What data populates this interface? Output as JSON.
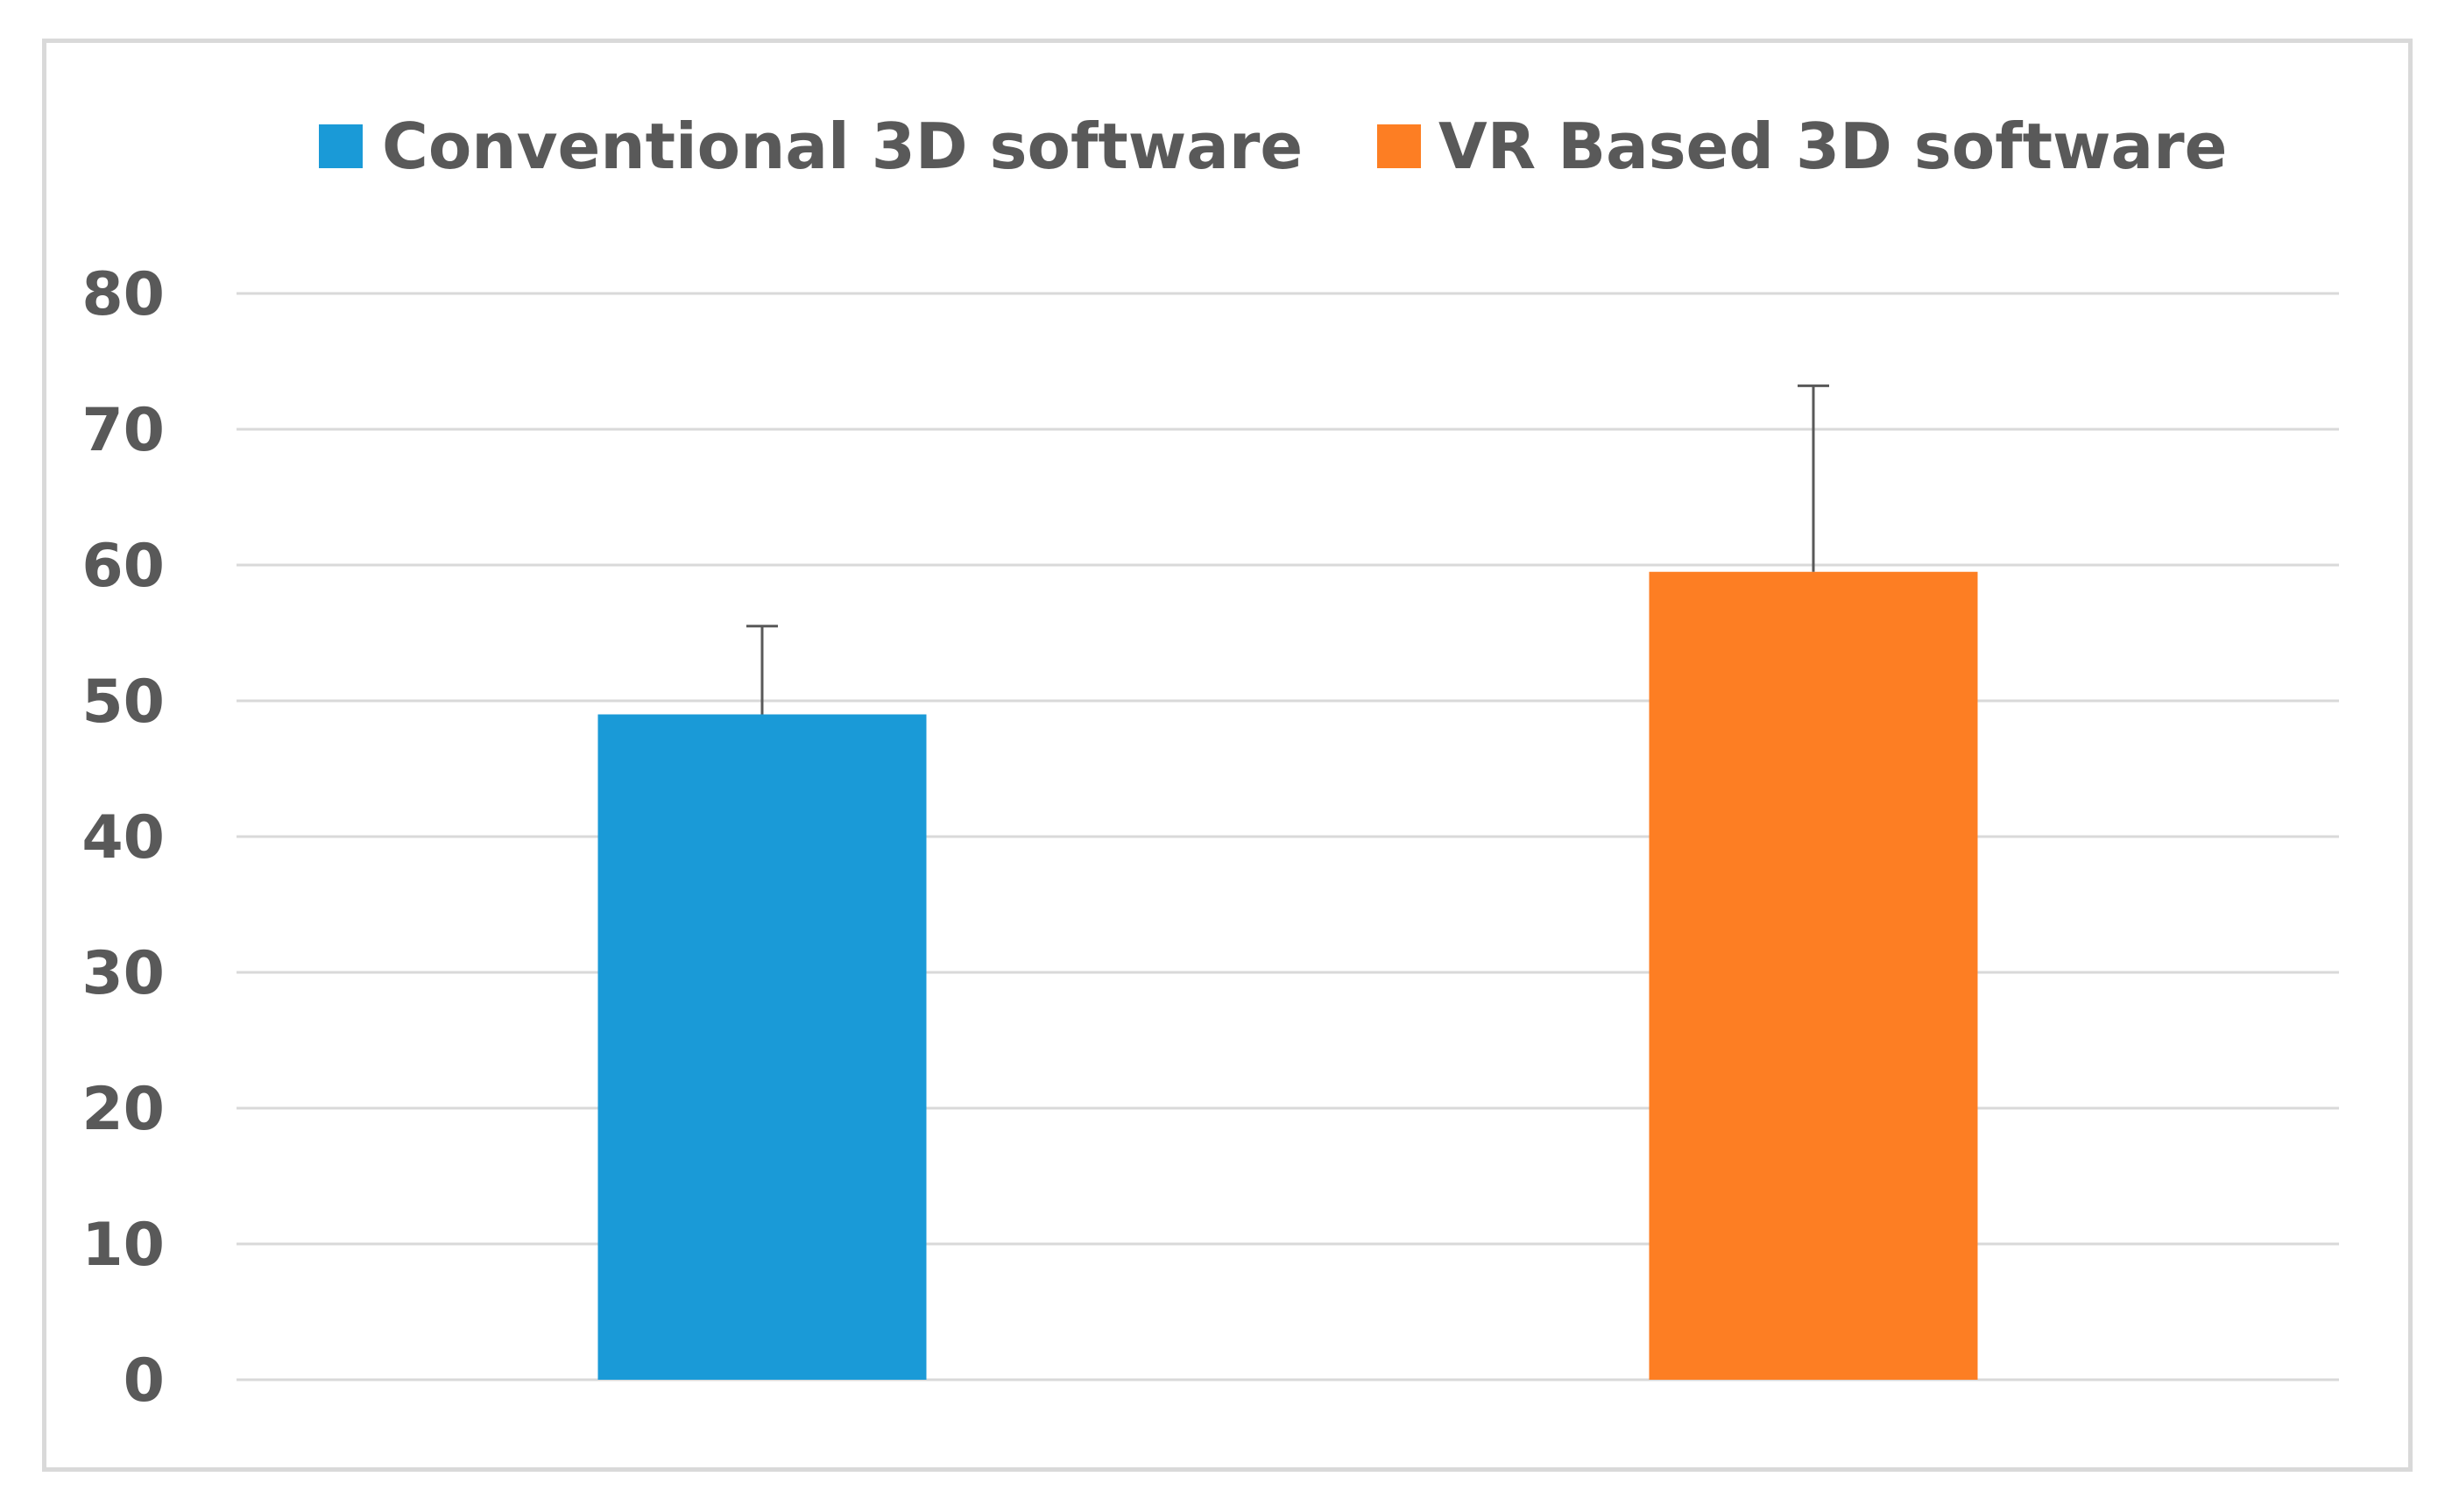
{
  "chart_data": {
    "type": "bar",
    "categories": [
      "Conventional 3D software",
      "VR Based 3D software"
    ],
    "series": [
      {
        "name": "Conventional 3D software",
        "value": 49,
        "error": 6.5,
        "color": "#1a9ad7"
      },
      {
        "name": "VR Based 3D software",
        "value": 59.5,
        "error": 13.7,
        "color": "#fd7e23"
      }
    ],
    "title": "",
    "xlabel": "",
    "ylabel": "",
    "ylim": [
      0,
      80
    ],
    "yticks": [
      0,
      10,
      20,
      30,
      40,
      50,
      60,
      70,
      80
    ],
    "grid": true,
    "legend_position": "top"
  }
}
